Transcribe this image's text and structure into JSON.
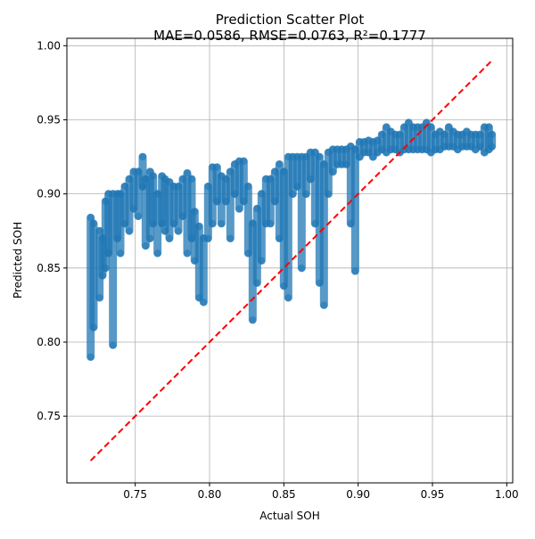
{
  "chart_data": {
    "type": "scatter",
    "title": "Prediction Scatter Plot",
    "subtitle": "MAE=0.0586, RMSE=0.0763, R²=0.1777",
    "xlabel": "Actual SOH",
    "ylabel": "Predicted SOH",
    "xlim": [
      0.704,
      1.004
    ],
    "ylim": [
      0.705,
      1.005
    ],
    "xticks": [
      0.75,
      0.8,
      0.85,
      0.9,
      0.95,
      1.0
    ],
    "xtick_labels": [
      "0.75",
      "0.80",
      "0.85",
      "0.90",
      "0.95",
      "1.00"
    ],
    "yticks": [
      0.75,
      0.8,
      0.85,
      0.9,
      0.95,
      1.0
    ],
    "ytick_labels": [
      "0.75",
      "0.80",
      "0.85",
      "0.90",
      "0.95",
      "1.00"
    ],
    "grid": true,
    "colors": {
      "points": "#1f77b4",
      "reference_line": "#ff0000",
      "grid": "#b0b0b0"
    },
    "reference_line": {
      "style": "dashed",
      "x": [
        0.72,
        0.99
      ],
      "y": [
        0.72,
        0.99
      ]
    },
    "series": [
      {
        "type": "scatter_clusters",
        "clusters": [
          [
            0.72,
            0.79,
            0.884
          ],
          [
            0.722,
            0.81,
            0.88
          ],
          [
            0.726,
            0.83,
            0.875
          ],
          [
            0.728,
            0.845,
            0.87
          ],
          [
            0.73,
            0.85,
            0.895
          ],
          [
            0.732,
            0.86,
            0.9
          ],
          [
            0.735,
            0.798,
            0.9
          ],
          [
            0.738,
            0.87,
            0.9
          ],
          [
            0.74,
            0.86,
            0.9
          ],
          [
            0.743,
            0.88,
            0.905
          ],
          [
            0.746,
            0.875,
            0.91
          ],
          [
            0.749,
            0.89,
            0.915
          ],
          [
            0.752,
            0.885,
            0.915
          ],
          [
            0.755,
            0.905,
            0.925
          ],
          [
            0.757,
            0.865,
            0.91
          ],
          [
            0.76,
            0.87,
            0.915
          ],
          [
            0.762,
            0.88,
            0.912
          ],
          [
            0.765,
            0.86,
            0.9
          ],
          [
            0.768,
            0.88,
            0.912
          ],
          [
            0.77,
            0.875,
            0.91
          ],
          [
            0.773,
            0.87,
            0.908
          ],
          [
            0.776,
            0.88,
            0.905
          ],
          [
            0.779,
            0.875,
            0.905
          ],
          [
            0.782,
            0.885,
            0.91
          ],
          [
            0.785,
            0.86,
            0.914
          ],
          [
            0.788,
            0.87,
            0.91
          ],
          [
            0.79,
            0.855,
            0.888
          ],
          [
            0.793,
            0.83,
            0.878
          ],
          [
            0.796,
            0.827,
            0.87
          ],
          [
            0.799,
            0.87,
            0.905
          ],
          [
            0.802,
            0.88,
            0.918
          ],
          [
            0.805,
            0.895,
            0.918
          ],
          [
            0.808,
            0.88,
            0.912
          ],
          [
            0.811,
            0.895,
            0.91
          ],
          [
            0.814,
            0.87,
            0.915
          ],
          [
            0.817,
            0.9,
            0.92
          ],
          [
            0.82,
            0.89,
            0.922
          ],
          [
            0.823,
            0.895,
            0.922
          ],
          [
            0.826,
            0.86,
            0.905
          ],
          [
            0.829,
            0.815,
            0.88
          ],
          [
            0.832,
            0.84,
            0.89
          ],
          [
            0.835,
            0.855,
            0.9
          ],
          [
            0.838,
            0.88,
            0.91
          ],
          [
            0.841,
            0.88,
            0.91
          ],
          [
            0.844,
            0.895,
            0.915
          ],
          [
            0.847,
            0.87,
            0.92
          ],
          [
            0.85,
            0.838,
            0.915
          ],
          [
            0.853,
            0.83,
            0.925
          ],
          [
            0.856,
            0.9,
            0.925
          ],
          [
            0.859,
            0.905,
            0.925
          ],
          [
            0.862,
            0.85,
            0.925
          ],
          [
            0.865,
            0.9,
            0.925
          ],
          [
            0.868,
            0.91,
            0.928
          ],
          [
            0.871,
            0.88,
            0.928
          ],
          [
            0.874,
            0.84,
            0.925
          ],
          [
            0.877,
            0.825,
            0.92
          ],
          [
            0.88,
            0.9,
            0.928
          ],
          [
            0.883,
            0.915,
            0.93
          ],
          [
            0.886,
            0.92,
            0.93
          ],
          [
            0.889,
            0.92,
            0.93
          ],
          [
            0.892,
            0.92,
            0.93
          ],
          [
            0.895,
            0.88,
            0.932
          ],
          [
            0.898,
            0.848,
            0.93
          ],
          [
            0.901,
            0.925,
            0.935
          ],
          [
            0.904,
            0.928,
            0.935
          ],
          [
            0.907,
            0.928,
            0.936
          ],
          [
            0.91,
            0.925,
            0.935
          ],
          [
            0.913,
            0.928,
            0.936
          ],
          [
            0.916,
            0.93,
            0.94
          ],
          [
            0.919,
            0.928,
            0.945
          ],
          [
            0.922,
            0.93,
            0.942
          ],
          [
            0.925,
            0.93,
            0.94
          ],
          [
            0.928,
            0.928,
            0.94
          ],
          [
            0.931,
            0.93,
            0.945
          ],
          [
            0.934,
            0.93,
            0.948
          ],
          [
            0.937,
            0.93,
            0.945
          ],
          [
            0.94,
            0.93,
            0.945
          ],
          [
            0.943,
            0.93,
            0.945
          ],
          [
            0.946,
            0.93,
            0.948
          ],
          [
            0.949,
            0.928,
            0.945
          ],
          [
            0.952,
            0.93,
            0.94
          ],
          [
            0.955,
            0.93,
            0.942
          ],
          [
            0.958,
            0.932,
            0.94
          ],
          [
            0.961,
            0.932,
            0.945
          ],
          [
            0.964,
            0.932,
            0.942
          ],
          [
            0.967,
            0.93,
            0.94
          ],
          [
            0.97,
            0.932,
            0.94
          ],
          [
            0.973,
            0.932,
            0.942
          ],
          [
            0.976,
            0.932,
            0.94
          ],
          [
            0.979,
            0.93,
            0.94
          ],
          [
            0.982,
            0.932,
            0.94
          ],
          [
            0.985,
            0.928,
            0.945
          ],
          [
            0.988,
            0.93,
            0.945
          ],
          [
            0.99,
            0.932,
            0.94
          ]
        ]
      }
    ]
  }
}
